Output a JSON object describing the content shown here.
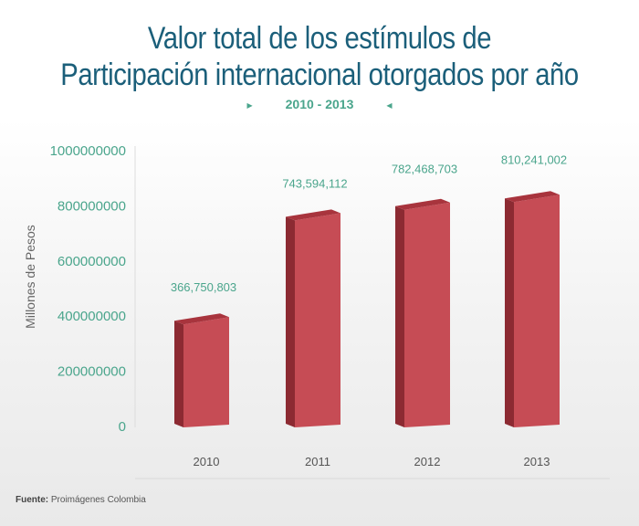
{
  "header": {
    "title_line1": "Valor total de los estímulos de",
    "title_line2": "Participación internacional otorgados por año",
    "subtitle": "2010 - 2013"
  },
  "source": {
    "label": "Fuente:",
    "text": "Proimágenes Colombia"
  },
  "colors": {
    "title": "#1b5f7a",
    "accent_green": "#4aa58c",
    "bar_front": "#c64c55",
    "bar_side": "#8c2a32",
    "bar_top": "#a8343d"
  },
  "chart_data": {
    "type": "bar",
    "title": "Valor total de los estímulos de Participación internacional otorgados por año",
    "subtitle": "2010 - 2013",
    "categories": [
      "2010",
      "2011",
      "2012",
      "2013"
    ],
    "values": [
      366750803,
      743594112,
      782468703,
      810241002
    ],
    "value_labels": [
      "366,750,803",
      "743,594,112",
      "782,468,703",
      "810,241,002"
    ],
    "ylabel": "Millones de Pesos",
    "xlabel": "",
    "ylim": [
      0,
      1000000000
    ],
    "yticks": [
      0,
      200000000,
      400000000,
      600000000,
      800000000,
      1000000000
    ],
    "ytick_labels": [
      "0",
      "200000000",
      "400000000",
      "600000000",
      "800000000",
      "1000000000"
    ],
    "grid": false,
    "legend": "none"
  }
}
